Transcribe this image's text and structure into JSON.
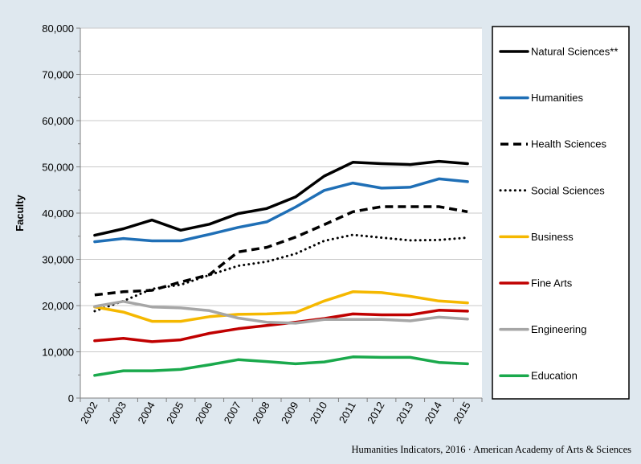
{
  "chart_data": {
    "type": "line",
    "ylabel": "Faculty",
    "xlabel": "",
    "ylim": [
      0,
      80000
    ],
    "yticks": [
      0,
      10000,
      20000,
      30000,
      40000,
      50000,
      60000,
      70000,
      80000
    ],
    "ytick_labels": [
      "0",
      "10,000",
      "20,000",
      "30,000",
      "40,000",
      "50,000",
      "60,000",
      "70,000",
      "80,000"
    ],
    "categories": [
      "2002",
      "2003",
      "2004",
      "2005",
      "2006",
      "2007",
      "2008",
      "2009",
      "2010",
      "2011",
      "2012",
      "2013",
      "2014",
      "2015"
    ],
    "grid": true,
    "legend_position": "right",
    "series": [
      {
        "name": "Natural Sciences**",
        "color": "#000000",
        "style": "solid",
        "values": [
          35200,
          36600,
          38500,
          36300,
          37600,
          39900,
          41000,
          43500,
          48000,
          51000,
          50700,
          50500,
          51200,
          50700
        ]
      },
      {
        "name": "Humanities",
        "color": "#1f6fb6",
        "style": "solid",
        "values": [
          33800,
          34500,
          34000,
          34000,
          35400,
          36900,
          38100,
          41300,
          44900,
          46500,
          45400,
          45600,
          47400,
          46800
        ]
      },
      {
        "name": "Health Sciences",
        "color": "#000000",
        "style": "dashed",
        "values": [
          22300,
          23000,
          23300,
          25100,
          26700,
          31600,
          32600,
          34800,
          37500,
          40300,
          41400,
          41400,
          41400,
          40300
        ]
      },
      {
        "name": "Social Sciences",
        "color": "#000000",
        "style": "dotted",
        "values": [
          18800,
          21000,
          23600,
          24500,
          26600,
          28600,
          29500,
          31200,
          34000,
          35300,
          34700,
          34100,
          34200,
          34700
        ]
      },
      {
        "name": "Business",
        "color": "#f5b800",
        "style": "solid",
        "values": [
          19700,
          18600,
          16600,
          16600,
          17600,
          18100,
          18200,
          18500,
          21000,
          23000,
          22800,
          22000,
          21000,
          20600
        ]
      },
      {
        "name": "Fine Arts",
        "color": "#c00000",
        "style": "solid",
        "values": [
          12400,
          12900,
          12200,
          12600,
          14000,
          15000,
          15700,
          16400,
          17200,
          18200,
          18000,
          18000,
          19000,
          18800
        ]
      },
      {
        "name": "Engineering",
        "color": "#a6a6a6",
        "style": "solid",
        "values": [
          19800,
          20900,
          19700,
          19500,
          18900,
          17300,
          16400,
          16200,
          17000,
          17000,
          17000,
          16700,
          17500,
          17100
        ]
      },
      {
        "name": "Education",
        "color": "#1aa94c",
        "style": "solid",
        "values": [
          4900,
          5900,
          5900,
          6200,
          7200,
          8300,
          7900,
          7400,
          7800,
          8900,
          8800,
          8800,
          7700,
          7400
        ]
      }
    ]
  },
  "source": "Humanities Indicators, 2016 · American Academy of Arts & Sciences"
}
